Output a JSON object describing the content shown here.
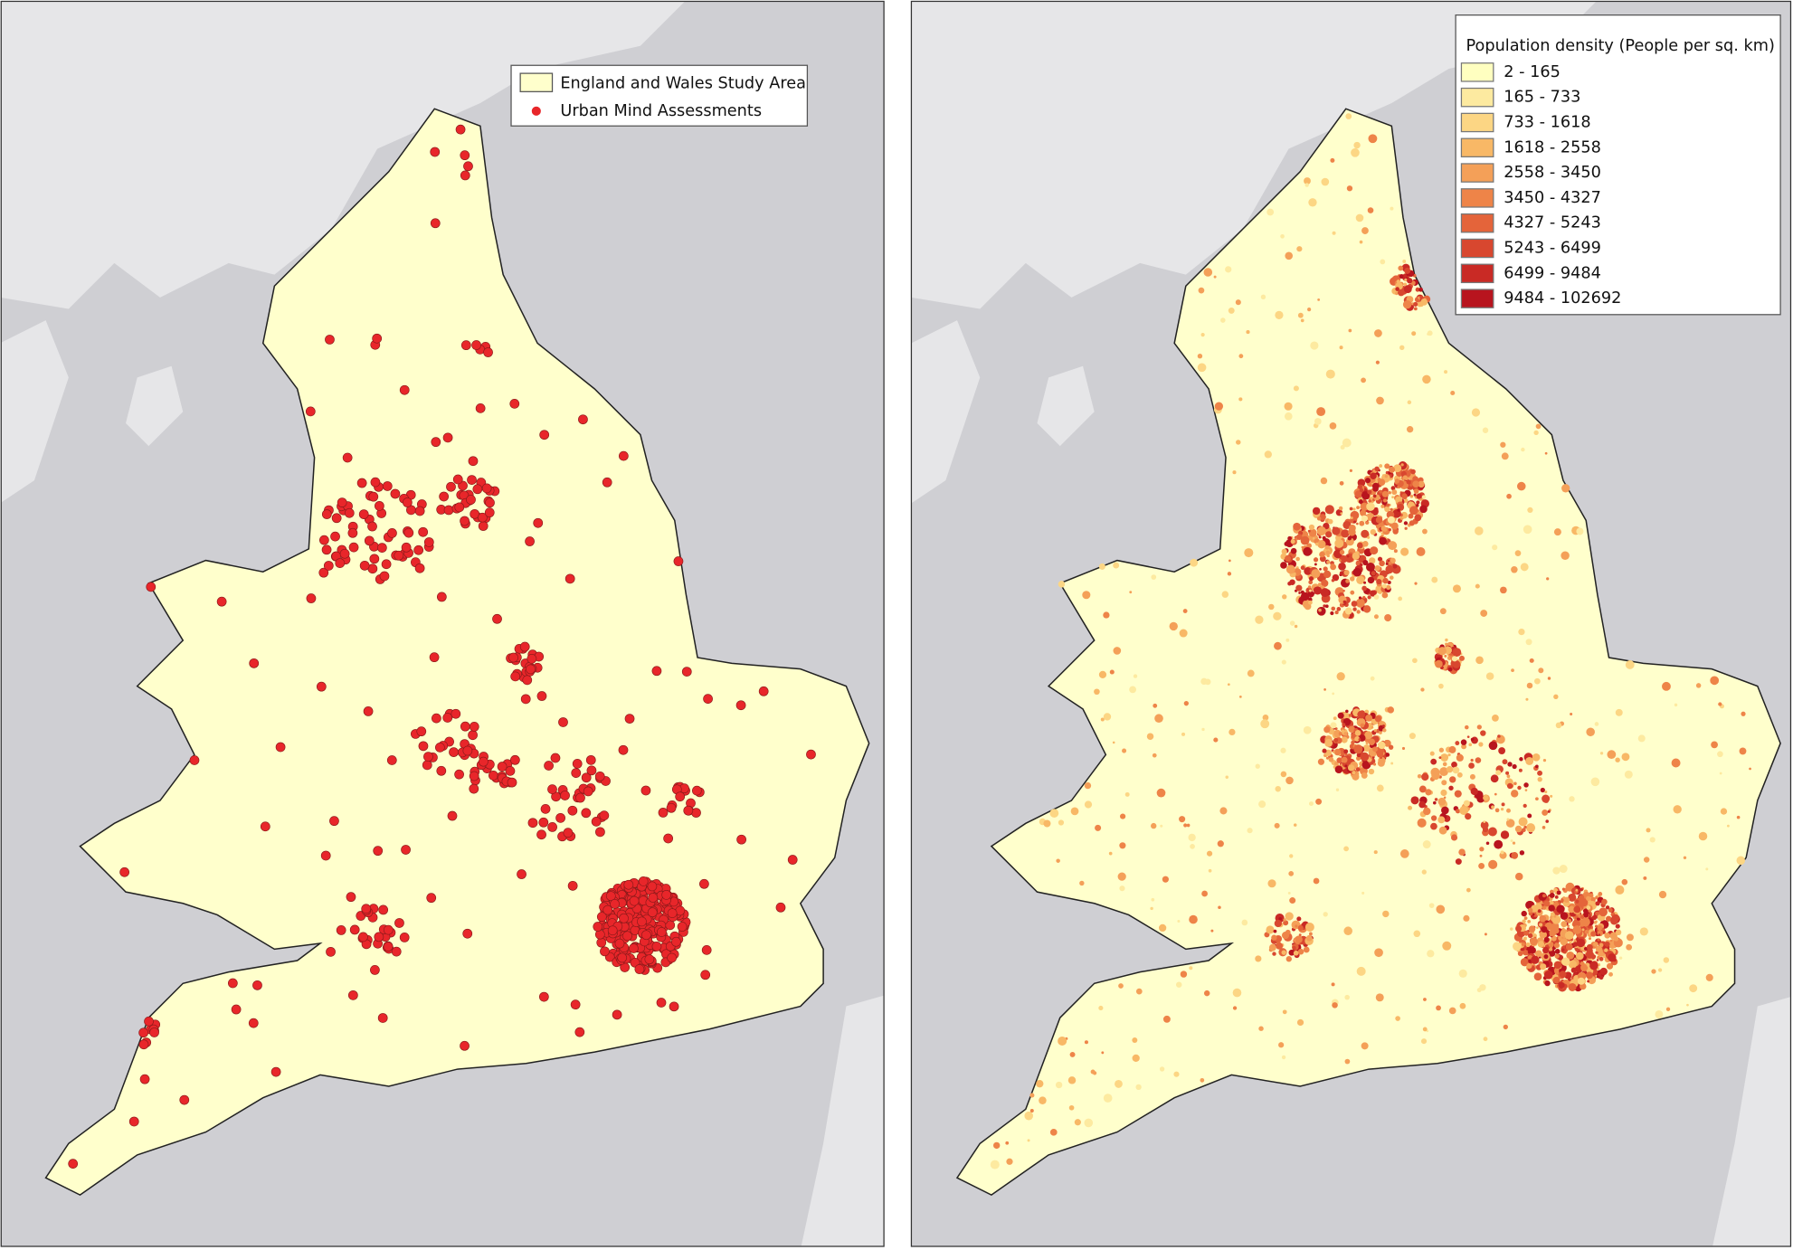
{
  "left_map": {
    "legend": [
      {
        "label": "England and Wales Study Area",
        "color": "#ffffcc"
      },
      {
        "label": "Urban Mind Assessments",
        "color": "#e8262a"
      }
    ]
  },
  "right_map": {
    "legend_title": "Population density (People per sq. km)",
    "classes": [
      {
        "label": "2 - 165",
        "color": "#ffffc0"
      },
      {
        "label": "165 - 733",
        "color": "#fdeaa0"
      },
      {
        "label": "733 - 1618",
        "color": "#fcd684"
      },
      {
        "label": "1618 - 2558",
        "color": "#f8b866"
      },
      {
        "label": "2558 - 3450",
        "color": "#f4a058"
      },
      {
        "label": "3450 - 4327",
        "color": "#ee8448"
      },
      {
        "label": "4327 - 5243",
        "color": "#e4643a"
      },
      {
        "label": "5243 - 6499",
        "color": "#d8472f"
      },
      {
        "label": "6499 - 9484",
        "color": "#c92a25"
      },
      {
        "label": "9484 - 102692",
        "color": "#b8141e"
      }
    ]
  }
}
